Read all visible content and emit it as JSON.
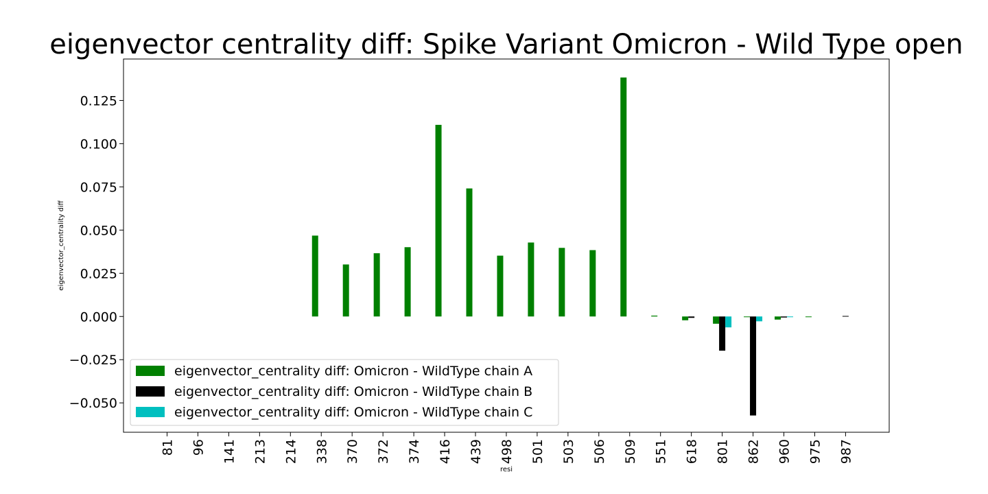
{
  "chart_data": {
    "type": "bar",
    "title": "eigenvector centrality diff: Spike Variant Omicron - Wild Type open",
    "xlabel": "resi",
    "ylabel": "eigenvector_centrality diff",
    "ylim": [
      -0.067,
      0.149
    ],
    "yticks": [
      -0.05,
      -0.025,
      0.0,
      0.025,
      0.05,
      0.075,
      0.1,
      0.125
    ],
    "ytick_labels": [
      "−0.050",
      "−0.025",
      "0.000",
      "0.025",
      "0.050",
      "0.075",
      "0.100",
      "0.125"
    ],
    "categories": [
      "81",
      "96",
      "141",
      "213",
      "214",
      "338",
      "370",
      "372",
      "374",
      "416",
      "439",
      "498",
      "501",
      "503",
      "506",
      "509",
      "551",
      "618",
      "801",
      "862",
      "960",
      "975",
      "987"
    ],
    "series": [
      {
        "name": "eigenvector_centrality diff: Omicron - WildType chain A",
        "color": "#008000",
        "values": [
          0,
          0,
          0,
          0,
          0,
          0.0468,
          0.0301,
          0.0366,
          0.0401,
          0.1109,
          0.0741,
          0.0352,
          0.0428,
          0.0397,
          0.0384,
          0.1383,
          0.0005,
          -0.0022,
          -0.0042,
          -0.0004,
          -0.0018,
          -0.0003,
          0
        ]
      },
      {
        "name": "eigenvector_centrality diff: Omicron - WildType chain B",
        "color": "#000000",
        "values": [
          0,
          0,
          0,
          0,
          0,
          0,
          0,
          0,
          0,
          0,
          0,
          0,
          0,
          0,
          0,
          0,
          0,
          -0.0008,
          -0.0198,
          -0.0573,
          -0.0006,
          0,
          0.0003
        ]
      },
      {
        "name": "eigenvector_centrality diff: Omicron - WildType chain C",
        "color": "#00bfbf",
        "values": [
          0,
          0,
          0,
          0,
          0,
          0,
          0,
          0,
          0,
          0,
          0,
          0,
          0,
          0,
          0,
          0,
          0,
          0,
          -0.0063,
          -0.0028,
          -0.0004,
          0,
          0
        ]
      }
    ],
    "legend_position": "lower-left",
    "grid": false
  }
}
